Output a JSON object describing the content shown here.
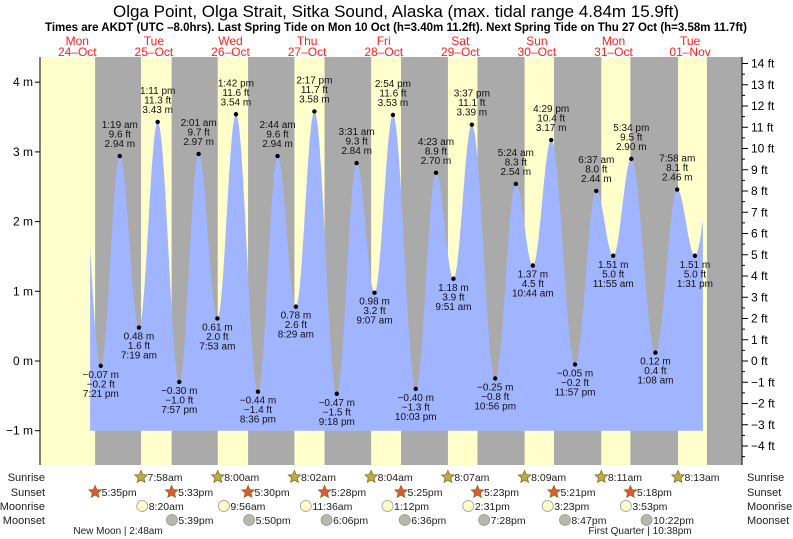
{
  "chart_data": {
    "type": "area",
    "title": "Olga Point, Olga Strait, Sitka Sound, Alaska (max. tidal range 4.84m 15.9ft)",
    "subtitle": "Times are AKDT (UTC –8.0hrs). Last Spring Tide on Mon 10 Oct (h=3.40m 11.2ft). Next Spring Tide on Thu 27 Oct (h=3.58m 11.7ft)",
    "days": [
      {
        "dow": "Mon",
        "date": "24–Oct"
      },
      {
        "dow": "Tue",
        "date": "25–Oct"
      },
      {
        "dow": "Wed",
        "date": "26–Oct"
      },
      {
        "dow": "Thu",
        "date": "27–Oct"
      },
      {
        "dow": "Fri",
        "date": "28–Oct"
      },
      {
        "dow": "Sat",
        "date": "29–Oct"
      },
      {
        "dow": "Sun",
        "date": "30–Oct"
      },
      {
        "dow": "Mon",
        "date": "31–Oct"
      },
      {
        "dow": "Tue",
        "date": "01–Nov"
      }
    ],
    "left_axis": {
      "unit": "m",
      "ticks": [
        "4 m",
        "3 m",
        "2 m",
        "1 m",
        "0 m",
        "−1 m"
      ],
      "values": [
        4,
        3,
        2,
        1,
        0,
        -1
      ],
      "ylim": [
        -1,
        4
      ]
    },
    "right_axis": {
      "unit": "ft",
      "ticks": [
        "14 ft",
        "13 ft",
        "12 ft",
        "11 ft",
        "10 ft",
        "9 ft",
        "8 ft",
        "7 ft",
        "6 ft",
        "5 ft",
        "4 ft",
        "3 ft",
        "2 ft",
        "1 ft",
        "0 ft",
        "−1 ft",
        "−2 ft",
        "−3 ft",
        "−4 ft"
      ],
      "values": [
        14,
        13,
        12,
        11,
        10,
        9,
        8,
        7,
        6,
        5,
        4,
        3,
        2,
        1,
        0,
        -1,
        -2,
        -3,
        -4
      ]
    },
    "extremes": [
      {
        "day": 0,
        "time": "7:21 pm",
        "m": "−0.07 m",
        "ft": "−0.2 ft",
        "type": "low"
      },
      {
        "day": 1,
        "time": "1:19 am",
        "m": "2.94 m",
        "ft": "9.6 ft",
        "type": "high"
      },
      {
        "day": 1,
        "time": "7:19 am",
        "m": "0.48 m",
        "ft": "1.6 ft",
        "type": "low"
      },
      {
        "day": 1,
        "time": "1:11 pm",
        "m": "3.43 m",
        "ft": "11.3 ft",
        "type": "high"
      },
      {
        "day": 1,
        "time": "7:57 pm",
        "m": "−0.30 m",
        "ft": "−1.0 ft",
        "type": "low"
      },
      {
        "day": 2,
        "time": "2:01 am",
        "m": "2.97 m",
        "ft": "9.7 ft",
        "type": "high"
      },
      {
        "day": 2,
        "time": "7:53 am",
        "m": "0.61 m",
        "ft": "2.0 ft",
        "type": "low"
      },
      {
        "day": 2,
        "time": "1:42 pm",
        "m": "3.54 m",
        "ft": "11.6 ft",
        "type": "high"
      },
      {
        "day": 2,
        "time": "8:36 pm",
        "m": "−0.44 m",
        "ft": "−1.4 ft",
        "type": "low"
      },
      {
        "day": 3,
        "time": "2:44 am",
        "m": "2.94 m",
        "ft": "9.6 ft",
        "type": "high"
      },
      {
        "day": 3,
        "time": "8:29 am",
        "m": "0.78 m",
        "ft": "2.6 ft",
        "type": "low"
      },
      {
        "day": 3,
        "time": "2:17 pm",
        "m": "3.58 m",
        "ft": "11.7 ft",
        "type": "high"
      },
      {
        "day": 3,
        "time": "9:18 pm",
        "m": "−0.47 m",
        "ft": "−1.5 ft",
        "type": "low"
      },
      {
        "day": 4,
        "time": "3:31 am",
        "m": "2.84 m",
        "ft": "9.3 ft",
        "type": "high"
      },
      {
        "day": 4,
        "time": "9:07 am",
        "m": "0.98 m",
        "ft": "3.2 ft",
        "type": "low"
      },
      {
        "day": 4,
        "time": "2:54 pm",
        "m": "3.53 m",
        "ft": "11.6 ft",
        "type": "high"
      },
      {
        "day": 4,
        "time": "10:03 pm",
        "m": "−0.40 m",
        "ft": "−1.3 ft",
        "type": "low"
      },
      {
        "day": 5,
        "time": "4:23 am",
        "m": "2.70 m",
        "ft": "8.9 ft",
        "type": "high"
      },
      {
        "day": 5,
        "time": "9:51 am",
        "m": "1.18 m",
        "ft": "3.9 ft",
        "type": "low"
      },
      {
        "day": 5,
        "time": "3:37 pm",
        "m": "3.39 m",
        "ft": "11.1 ft",
        "type": "high"
      },
      {
        "day": 5,
        "time": "10:56 pm",
        "m": "−0.25 m",
        "ft": "−0.8 ft",
        "type": "low"
      },
      {
        "day": 6,
        "time": "5:24 am",
        "m": "2.54 m",
        "ft": "8.3 ft",
        "type": "high"
      },
      {
        "day": 6,
        "time": "10:44 am",
        "m": "1.37 m",
        "ft": "4.5 ft",
        "type": "low"
      },
      {
        "day": 6,
        "time": "4:29 pm",
        "m": "3.17 m",
        "ft": "10.4 ft",
        "type": "high"
      },
      {
        "day": 6,
        "time": "11:57 pm",
        "m": "−0.05 m",
        "ft": "−0.2 ft",
        "type": "low"
      },
      {
        "day": 7,
        "time": "6:37 am",
        "m": "2.44 m",
        "ft": "8.0 ft",
        "type": "high"
      },
      {
        "day": 7,
        "time": "11:55 am",
        "m": "1.51 m",
        "ft": "5.0 ft",
        "type": "low"
      },
      {
        "day": 7,
        "time": "5:34 pm",
        "m": "2.90 m",
        "ft": "9.5 ft",
        "type": "high"
      },
      {
        "day": 8,
        "time": "1:08 am",
        "m": "0.12 m",
        "ft": "0.4 ft",
        "type": "low"
      },
      {
        "day": 8,
        "time": "7:58 am",
        "m": "2.46 m",
        "ft": "8.1 ft",
        "type": "high"
      },
      {
        "day": 8,
        "time": "1:31 pm",
        "m": "1.51 m",
        "ft": "5.0 ft",
        "type": "low"
      }
    ],
    "rows": {
      "sunrise": {
        "label": "Sunrise",
        "first_day": 1,
        "times": [
          "7:58am",
          "8:00am",
          "8:02am",
          "8:04am",
          "8:07am",
          "8:09am",
          "8:11am",
          "8:13am"
        ]
      },
      "sunset": {
        "label": "Sunset",
        "first_day": 0,
        "times": [
          "5:35pm",
          "5:33pm",
          "5:30pm",
          "5:28pm",
          "5:25pm",
          "5:23pm",
          "5:21pm",
          "5:18pm"
        ]
      },
      "moonrise": {
        "label": "Moonrise",
        "first_day": 1,
        "times": [
          "8:20am",
          "9:56am",
          "11:36am",
          "1:12pm",
          "2:31pm",
          "3:23pm",
          "3:53pm"
        ]
      },
      "moonset": {
        "label": "Moonset",
        "first_day": 1,
        "times": [
          "5:39pm",
          "5:50pm",
          "6:06pm",
          "6:36pm",
          "7:28pm",
          "8:47pm",
          "10:22pm"
        ]
      }
    },
    "moon_phases": [
      "New Moon | 2:48am",
      "First Quarter | 10:38pm"
    ]
  },
  "colors": {
    "day": "#ffffcc",
    "night": "#aaaaaa",
    "water": "#a0b4ff",
    "date": "#ff2020",
    "sun_rise": "#b8b040",
    "sun_set": "#e05a30",
    "moon_rise": "#ffffcc",
    "moon_set": "#b8b8a8"
  }
}
